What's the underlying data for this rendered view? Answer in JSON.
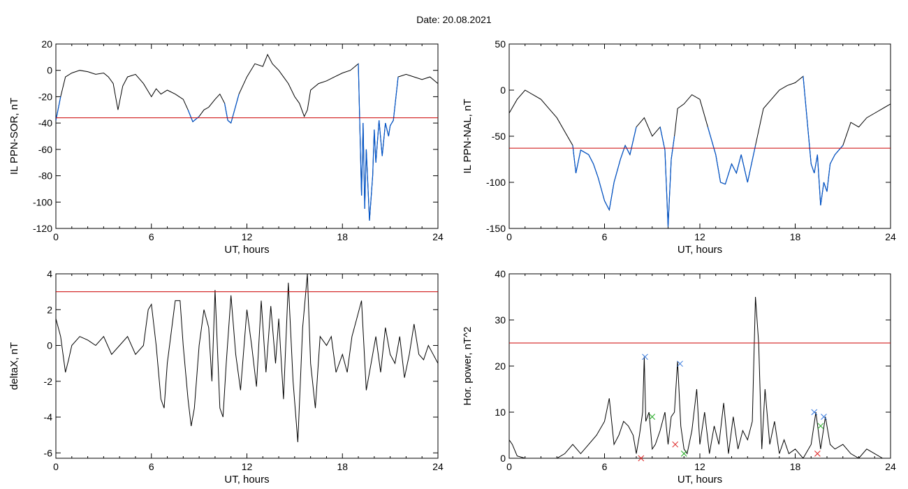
{
  "figure": {
    "title": "Date:  20.08.2021"
  },
  "chart_data": [
    {
      "type": "line",
      "xlabel": "UT, hours",
      "ylabel": "IL PPN-SOR, nT",
      "xlim": [
        0,
        24
      ],
      "ylim": [
        -120,
        20
      ],
      "xticks": [
        0,
        6,
        12,
        18,
        24
      ],
      "yticks": [
        -120,
        -100,
        -80,
        -60,
        -40,
        -20,
        0,
        20
      ],
      "threshold": -36,
      "colors": {
        "line": "#000000",
        "below_threshold": "#0055cc",
        "threshold": "#cc0000"
      },
      "series": [
        {
          "x": [
            0,
            0.3,
            0.6,
            1,
            1.5,
            2,
            2.5,
            3,
            3.3,
            3.6,
            3.9,
            4.2,
            4.5,
            5,
            5.5,
            6,
            6.3,
            6.6,
            7,
            7.5,
            8,
            8.3,
            8.6,
            9,
            9.3,
            9.6,
            10,
            10.3,
            10.6,
            10.8,
            11,
            11.5,
            12,
            12.5,
            13,
            13.3,
            13.6,
            14,
            14.3,
            14.6,
            15,
            15.3,
            15.6,
            15.8,
            16,
            16.5,
            17,
            17.5,
            18,
            18.5,
            19,
            19.2,
            19.3,
            19.4,
            19.5,
            19.7,
            19.9,
            20,
            20.1,
            20.3,
            20.5,
            20.7,
            20.9,
            21,
            21.2,
            21.5,
            22,
            22.5,
            23,
            23.5,
            24
          ],
          "y": [
            -38,
            -20,
            -5,
            -2,
            0,
            -1,
            -3,
            -2,
            -5,
            -10,
            -30,
            -12,
            -5,
            -3,
            -10,
            -20,
            -14,
            -18,
            -15,
            -18,
            -22,
            -30,
            -39,
            -35,
            -30,
            -28,
            -22,
            -18,
            -25,
            -38,
            -40,
            -18,
            -5,
            5,
            3,
            12,
            5,
            0,
            -5,
            -10,
            -20,
            -25,
            -35,
            -30,
            -15,
            -10,
            -8,
            -5,
            -2,
            0,
            5,
            -95,
            -40,
            -105,
            -60,
            -114,
            -80,
            -45,
            -70,
            -38,
            -65,
            -40,
            -50,
            -42,
            -38,
            -5,
            -3,
            -5,
            -7,
            -5,
            -10
          ]
        }
      ]
    },
    {
      "type": "line",
      "xlabel": "UT, hours",
      "ylabel": "IL PPN-NAL, nT",
      "xlim": [
        0,
        24
      ],
      "ylim": [
        -150,
        50
      ],
      "xticks": [
        0,
        6,
        12,
        18,
        24
      ],
      "yticks": [
        -150,
        -100,
        -50,
        0,
        50
      ],
      "threshold": -63,
      "colors": {
        "line": "#000000",
        "below_threshold": "#0055cc",
        "threshold": "#cc0000"
      },
      "series": [
        {
          "x": [
            0,
            0.5,
            1,
            1.5,
            2,
            2.5,
            3,
            3.5,
            4,
            4.2,
            4.5,
            5,
            5.3,
            5.6,
            6,
            6.3,
            6.6,
            7,
            7.3,
            7.6,
            8,
            8.5,
            9,
            9.5,
            9.8,
            10,
            10.2,
            10.4,
            10.6,
            11,
            11.5,
            12,
            12.5,
            13,
            13.3,
            13.6,
            14,
            14.3,
            14.6,
            15,
            15.5,
            16,
            16.5,
            17,
            17.5,
            18,
            18.5,
            19,
            19.2,
            19.4,
            19.6,
            19.8,
            20,
            20.2,
            20.5,
            21,
            21.5,
            22,
            22.5,
            23,
            23.5,
            24
          ],
          "y": [
            -25,
            -10,
            0,
            -5,
            -10,
            -20,
            -30,
            -45,
            -60,
            -90,
            -65,
            -70,
            -80,
            -95,
            -120,
            -130,
            -100,
            -75,
            -60,
            -70,
            -40,
            -30,
            -50,
            -40,
            -65,
            -148,
            -75,
            -50,
            -20,
            -15,
            -5,
            -10,
            -40,
            -70,
            -100,
            -102,
            -80,
            -90,
            -70,
            -100,
            -60,
            -20,
            -10,
            0,
            5,
            8,
            15,
            -80,
            -90,
            -70,
            -125,
            -100,
            -110,
            -80,
            -70,
            -60,
            -35,
            -40,
            -30,
            -25,
            -20,
            -15
          ]
        }
      ]
    },
    {
      "type": "line",
      "xlabel": "UT, hours",
      "ylabel": "deltaX, nT",
      "xlim": [
        0,
        24
      ],
      "ylim": [
        -6.3,
        4
      ],
      "xticks": [
        0,
        6,
        12,
        18,
        24
      ],
      "yticks": [
        -6,
        -4,
        -2,
        0,
        2,
        4
      ],
      "threshold": 3,
      "colors": {
        "line": "#000000",
        "threshold": "#cc0000"
      },
      "series": [
        {
          "x": [
            0,
            0.3,
            0.6,
            0.8,
            1,
            1.5,
            2,
            2.5,
            3,
            3.5,
            4,
            4.5,
            5,
            5.5,
            5.8,
            6,
            6.3,
            6.6,
            6.8,
            7,
            7.5,
            7.8,
            8,
            8.3,
            8.5,
            8.7,
            9,
            9.3,
            9.6,
            9.8,
            10,
            10.3,
            10.5,
            10.7,
            11,
            11.3,
            11.6,
            12,
            12.3,
            12.6,
            12.9,
            13.2,
            13.5,
            13.8,
            14,
            14.3,
            14.6,
            14.9,
            15.2,
            15.5,
            15.8,
            16,
            16.3,
            16.6,
            17,
            17.3,
            17.6,
            18,
            18.3,
            18.6,
            18.9,
            19.2,
            19.5,
            19.8,
            20.1,
            20.4,
            20.7,
            21,
            21.3,
            21.6,
            21.9,
            22.2,
            22.5,
            22.8,
            23.1,
            23.4,
            23.7,
            24
          ],
          "y": [
            1.5,
            0.5,
            -1.5,
            -0.8,
            0,
            0.5,
            0.3,
            0,
            0.5,
            -0.5,
            0,
            0.5,
            -0.5,
            0,
            2,
            2.3,
            0,
            -3,
            -3.5,
            -1,
            2.5,
            2.5,
            0,
            -3,
            -4.5,
            -3.5,
            0,
            2,
            1,
            -2,
            3.1,
            -3.5,
            -4,
            -1,
            2.8,
            -0.5,
            -2.5,
            2,
            0,
            -2.3,
            2.5,
            -1.5,
            2.2,
            -1,
            1.5,
            -3,
            3.5,
            -2,
            -5.4,
            1,
            4,
            -1,
            -3.5,
            0.5,
            0,
            0.5,
            -1.5,
            -0.5,
            -1.5,
            0.5,
            1.5,
            2.5,
            -2.5,
            -1,
            0.5,
            -1.5,
            1,
            -0.5,
            -1,
            0.5,
            -1.8,
            -0.5,
            1.2,
            -0.5,
            -0.8,
            0,
            -0.5,
            -1
          ]
        }
      ]
    },
    {
      "type": "line",
      "xlabel": "UT, hours",
      "ylabel": "Hor. power, nT^2",
      "xlim": [
        0,
        24
      ],
      "ylim": [
        0,
        40
      ],
      "xticks": [
        0,
        6,
        12,
        18,
        24
      ],
      "yticks": [
        0,
        10,
        20,
        30,
        40
      ],
      "threshold": 25,
      "colors": {
        "line": "#000000",
        "threshold": "#cc0000",
        "marker_blue": "#3377dd",
        "marker_red": "#dd2222",
        "marker_green": "#22aa22"
      },
      "series": [
        {
          "x": [
            0,
            0.2,
            0.5,
            1,
            2,
            3,
            3.5,
            4,
            4.5,
            5,
            5.5,
            6,
            6.3,
            6.6,
            6.9,
            7.2,
            7.5,
            7.8,
            8,
            8.2,
            8.4,
            8.5,
            8.6,
            8.8,
            9,
            9.2,
            9.5,
            9.8,
            10,
            10.2,
            10.4,
            10.6,
            10.8,
            11,
            11.2,
            11.5,
            11.8,
            12,
            12.3,
            12.6,
            12.9,
            13.2,
            13.5,
            13.8,
            14.1,
            14.4,
            14.7,
            15,
            15.3,
            15.5,
            15.7,
            15.9,
            16.1,
            16.4,
            16.7,
            17,
            17.3,
            17.6,
            18,
            18.5,
            19,
            19.3,
            19.6,
            19.9,
            20.2,
            20.5,
            21,
            21.5,
            22,
            22.5,
            23,
            23.5,
            24
          ],
          "y": [
            4,
            3,
            0.5,
            0,
            0,
            0,
            1,
            3,
            1,
            3,
            5,
            8,
            13,
            3,
            5,
            8,
            7,
            5,
            1,
            5,
            10,
            22,
            8,
            10,
            2,
            3,
            6,
            10,
            3,
            9,
            10,
            21,
            7,
            2,
            1,
            6,
            15,
            3,
            10,
            1,
            7,
            3,
            12,
            1,
            9,
            2,
            6,
            4,
            8,
            35,
            25,
            2,
            15,
            3,
            8,
            1,
            4,
            1,
            2,
            0,
            3,
            10,
            2,
            9,
            3,
            2,
            3,
            1,
            0,
            2,
            1,
            0,
            0
          ]
        }
      ],
      "markers": [
        {
          "x": 8.55,
          "y": 22,
          "color": "blue"
        },
        {
          "x": 10.75,
          "y": 20.5,
          "color": "blue"
        },
        {
          "x": 19.2,
          "y": 10,
          "color": "blue"
        },
        {
          "x": 19.8,
          "y": 9,
          "color": "blue"
        },
        {
          "x": 8.3,
          "y": 0,
          "color": "red"
        },
        {
          "x": 10.45,
          "y": 3,
          "color": "red"
        },
        {
          "x": 19.4,
          "y": 1,
          "color": "red"
        },
        {
          "x": 9.0,
          "y": 9,
          "color": "green"
        },
        {
          "x": 11.0,
          "y": 1,
          "color": "green"
        },
        {
          "x": 19.6,
          "y": 7,
          "color": "green"
        }
      ]
    }
  ]
}
